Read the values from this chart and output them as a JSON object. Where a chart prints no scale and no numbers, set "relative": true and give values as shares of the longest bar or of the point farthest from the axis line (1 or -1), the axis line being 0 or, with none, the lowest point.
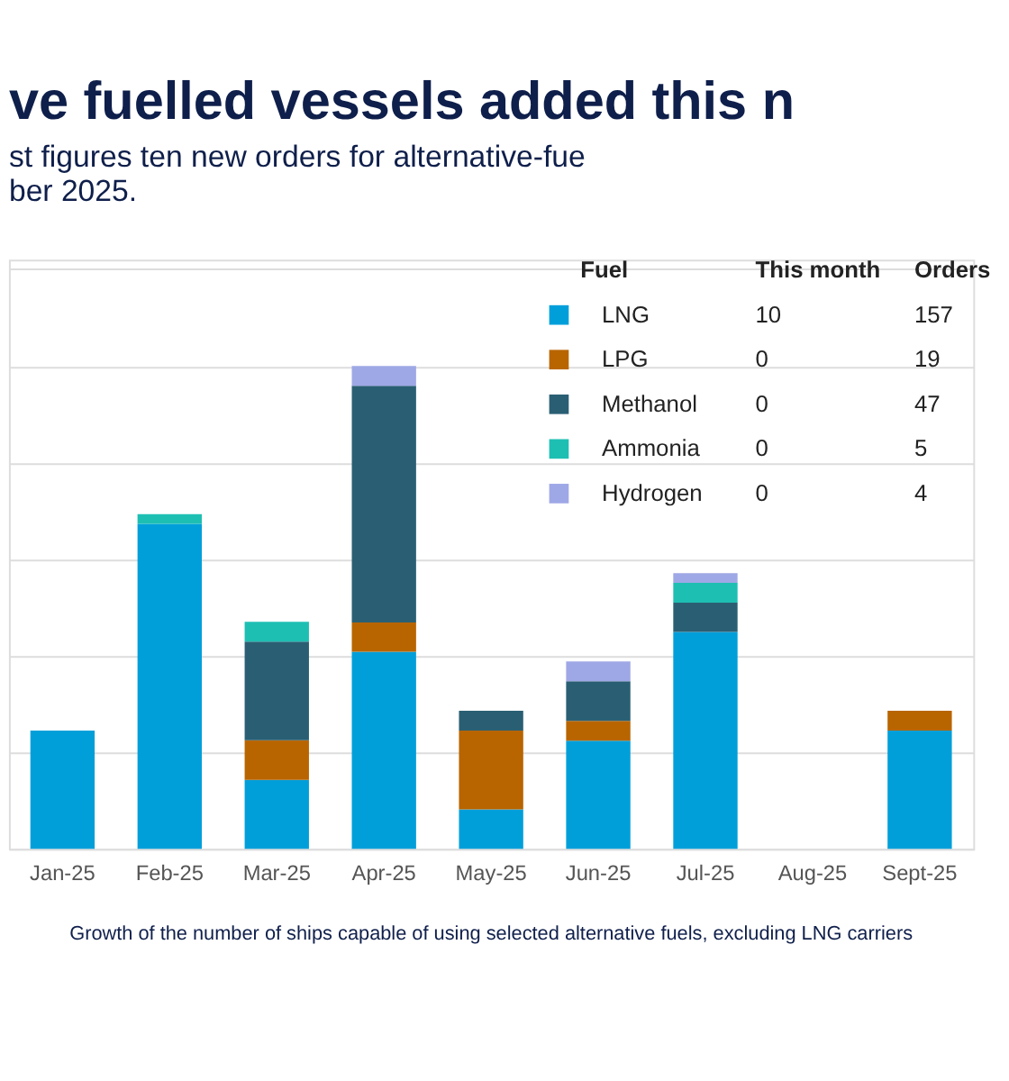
{
  "chart_data": {
    "type": "bar",
    "stacked": true,
    "relative": true,
    "grid": "y",
    "legend": "top right",
    "title": "ve fuelled vessels added this n",
    "subtitle": "st figures ten new orders for alternative-fue\nber 2025.",
    "legend_title": "Fuel",
    "categories": [
      "Jan-25",
      "Feb-25",
      "Mar-25",
      "Apr-25",
      "May-25",
      "Jun-25",
      "Jul-25",
      "Aug-25",
      "Sept-25"
    ],
    "series": [
      {
        "name": "LNG",
        "color": "#009fda",
        "values": [
          0.245,
          0.673,
          0.143,
          0.408,
          0.082,
          0.224,
          0.449,
          0,
          0.245
        ]
      },
      {
        "name": "LPG",
        "color": "#b86500",
        "values": [
          0,
          0,
          0.082,
          0.061,
          0.163,
          0.041,
          0,
          0,
          0.041
        ]
      },
      {
        "name": "Methanol",
        "color": "#2a5f73",
        "values": [
          0,
          0,
          0.204,
          0.49,
          0.041,
          0.082,
          0.061,
          0,
          0
        ]
      },
      {
        "name": "Ammonia",
        "color": "#1ebfb3",
        "values": [
          0,
          0.02,
          0.041,
          0,
          0,
          0,
          0.041,
          0,
          0
        ]
      },
      {
        "name": "Hydrogen",
        "color": "#9fa8e6",
        "values": [
          0,
          0,
          0,
          0.041,
          0,
          0.041,
          0.02,
          0,
          0
        ]
      }
    ],
    "annotations": [
      "This month",
      "Orders",
      "10",
      "0",
      "0",
      "0",
      "0",
      "157",
      "19",
      "47",
      "5",
      "4",
      "Growth of the number of ships capable of using selected alternative fuels, excluding LNG carriers"
    ]
  }
}
